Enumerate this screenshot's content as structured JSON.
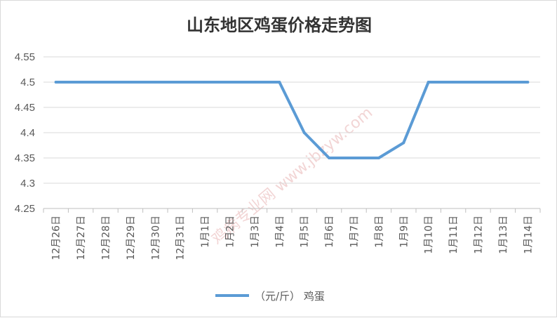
{
  "chart_data": {
    "type": "line",
    "title": "山东地区鸡蛋价格走势图",
    "categories": [
      "12月26日",
      "12月27日",
      "12月28日",
      "12月29日",
      "12月30日",
      "12月31日",
      "1月1日",
      "1月2日",
      "1月3日",
      "1月4日",
      "1月5日",
      "1月6日",
      "1月7日",
      "1月8日",
      "1月9日",
      "1月10日",
      "1月11日",
      "1月12日",
      "1月13日",
      "1月14日"
    ],
    "series": [
      {
        "name": "（元/斤） 鸡蛋",
        "color": "#5b9bd5",
        "values": [
          4.5,
          4.5,
          4.5,
          4.5,
          4.5,
          4.5,
          4.5,
          4.5,
          4.5,
          4.5,
          4.4,
          4.35,
          4.35,
          4.35,
          4.38,
          4.5,
          4.5,
          4.5,
          4.5,
          4.5
        ]
      }
    ],
    "yticks": [
      "4.55",
      "4.5",
      "4.45",
      "4.4",
      "4.35",
      "4.3",
      "4.25"
    ],
    "ylim": [
      4.25,
      4.55
    ],
    "grid": true,
    "legend_position": "bottom",
    "watermark": "鸡病专业网 www.jbzyw.com"
  }
}
